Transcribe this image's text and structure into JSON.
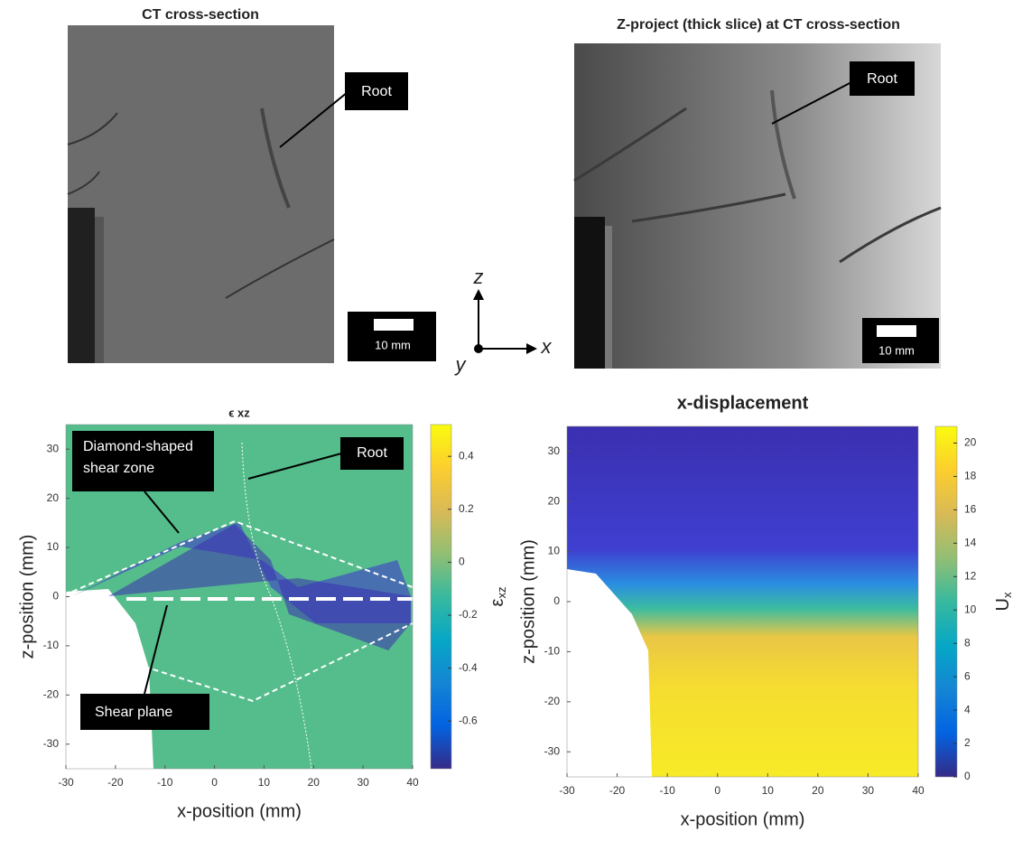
{
  "images": [
    {
      "title": "CT cross-section",
      "label": "Root",
      "scale_bar": "10 mm"
    },
    {
      "title": "Z-project (thick slice) at CT cross-section",
      "label": "Root",
      "scale_bar": "10 mm"
    }
  ],
  "axes_diagram": {
    "z": "z",
    "x": "x",
    "y": "y"
  },
  "chart_data": [
    {
      "type": "heatmap",
      "title": "ϵ xz",
      "xlabel": "x-position (mm)",
      "ylabel": "z-position (mm)",
      "xlim": [
        -30,
        40
      ],
      "ylim": [
        -35,
        35
      ],
      "xticks": [
        -30,
        -20,
        -10,
        0,
        10,
        20,
        30,
        40
      ],
      "yticks": [
        -30,
        -20,
        -10,
        0,
        10,
        20,
        30
      ],
      "colorbar_label": {
        "main": "ε",
        "sub": "xz"
      },
      "clim": [
        -0.78,
        0.52
      ],
      "cticks": [
        -0.6,
        -0.4,
        -0.2,
        0,
        0.2,
        0.4
      ],
      "annotations": [
        "Diamond-shaped shear zone",
        "Root",
        "Shear plane"
      ]
    },
    {
      "type": "heatmap",
      "title": "x-displacement",
      "xlabel": "x-position (mm)",
      "ylabel": "z-position (mm)",
      "xlim": [
        -30,
        40
      ],
      "ylim": [
        -35,
        35
      ],
      "xticks": [
        -30,
        -20,
        -10,
        0,
        10,
        20,
        30,
        40
      ],
      "yticks": [
        -30,
        -20,
        -10,
        0,
        10,
        20,
        30
      ],
      "colorbar_label": {
        "main": "U",
        "sub": "x"
      },
      "clim": [
        0,
        21
      ],
      "cticks": [
        0,
        2,
        4,
        6,
        8,
        10,
        12,
        14,
        16,
        18,
        20
      ]
    }
  ]
}
